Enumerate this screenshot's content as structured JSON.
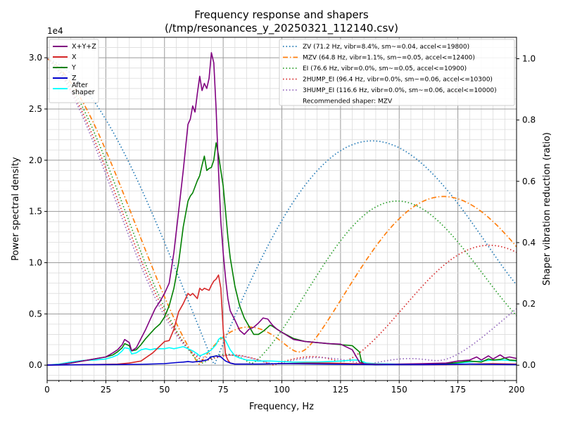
{
  "chart_data": {
    "type": "line",
    "title": "Frequency response and shapers",
    "subtitle": "(/tmp/resonances_y_20250321_112140.csv)",
    "xlabel": "Frequency, Hz",
    "ylabel": "Power spectral density",
    "y2label": "Shaper vibration reduction (ratio)",
    "y_offset_text": "1e4",
    "xlim": [
      0,
      200
    ],
    "ylim": [
      -1500,
      32000
    ],
    "y2lim": [
      -0.05,
      1.07
    ],
    "x_ticks": [
      "0",
      "25",
      "50",
      "75",
      "100",
      "125",
      "150",
      "175",
      "200"
    ],
    "y_ticks": [
      "0.0",
      "0.5",
      "1.0",
      "1.5",
      "2.0",
      "2.5",
      "3.0"
    ],
    "y2_ticks": [
      "0.0",
      "0.2",
      "0.4",
      "0.6",
      "0.8",
      "1.0"
    ],
    "grid": true,
    "legend_left_position": "top-left",
    "legend_right_position": "top-right",
    "recommended_text": "Recommended shaper: MZV",
    "psd_series": [
      {
        "name": "X+Y+Z",
        "color": "#800080",
        "x": [
          0,
          5,
          10,
          15,
          20,
          25,
          28,
          30,
          32,
          33,
          35,
          36,
          38,
          40,
          42,
          44,
          46,
          48,
          50,
          52,
          54,
          56,
          58,
          60,
          61,
          62,
          63,
          64,
          65,
          66,
          67,
          68,
          69,
          70,
          71,
          72,
          73,
          74,
          75,
          76,
          77,
          78,
          80,
          82,
          84,
          86,
          88,
          90,
          92,
          94,
          95,
          96,
          98,
          100,
          105,
          110,
          115,
          120,
          125,
          130,
          133,
          134,
          135,
          136,
          140,
          150,
          160,
          170,
          175,
          180,
          183,
          185,
          188,
          190,
          193,
          195,
          197,
          200
        ],
        "y": [
          0,
          50,
          200,
          400,
          600,
          800,
          1200,
          1500,
          2000,
          2500,
          2200,
          1400,
          1700,
          2600,
          3500,
          4500,
          5500,
          6200,
          7000,
          8000,
          11000,
          15000,
          19000,
          23500,
          24000,
          25300,
          24700,
          26500,
          28200,
          26800,
          27500,
          27000,
          28000,
          30500,
          29500,
          25000,
          19000,
          14000,
          11000,
          8500,
          6500,
          5300,
          4400,
          3400,
          3000,
          3500,
          3700,
          4100,
          4600,
          4500,
          4200,
          3900,
          3500,
          3200,
          2500,
          2300,
          2200,
          2100,
          2050,
          1500,
          300,
          200,
          150,
          100,
          50,
          100,
          150,
          200,
          400,
          500,
          800,
          500,
          900,
          600,
          1000,
          700,
          800,
          650
        ]
      },
      {
        "name": "X",
        "color": "#d62728",
        "x": [
          0,
          10,
          20,
          30,
          35,
          40,
          45,
          50,
          52,
          54,
          56,
          58,
          60,
          61,
          62,
          64,
          65,
          66,
          67,
          68,
          69,
          70,
          71,
          72,
          73,
          74,
          75,
          76,
          77,
          78,
          80,
          90,
          100,
          110,
          120,
          130,
          140,
          150,
          160,
          170,
          180,
          190,
          200
        ],
        "y": [
          0,
          30,
          60,
          100,
          200,
          400,
          1200,
          2300,
          2400,
          3500,
          5200,
          6000,
          7000,
          6800,
          7000,
          6500,
          7500,
          7300,
          7500,
          7400,
          7300,
          7800,
          8200,
          8400,
          8800,
          7500,
          3500,
          1000,
          500,
          200,
          100,
          100,
          150,
          200,
          200,
          150,
          100,
          50,
          50,
          50,
          100,
          150,
          100
        ]
      },
      {
        "name": "Y",
        "color": "#008000",
        "x": [
          0,
          5,
          10,
          15,
          20,
          25,
          28,
          30,
          32,
          33,
          34,
          35,
          36,
          38,
          40,
          42,
          44,
          46,
          48,
          50,
          52,
          54,
          56,
          58,
          60,
          61,
          62,
          64,
          65,
          66,
          67,
          68,
          69,
          70,
          71,
          72,
          73,
          74,
          75,
          76,
          77,
          78,
          80,
          82,
          84,
          86,
          88,
          90,
          92,
          94,
          95,
          96,
          98,
          100,
          105,
          110,
          115,
          120,
          125,
          130,
          133,
          134,
          135,
          136,
          140,
          150,
          160,
          170,
          175,
          180,
          185,
          188,
          190,
          193,
          195,
          197,
          200
        ],
        "y": [
          0,
          50,
          200,
          400,
          600,
          800,
          1000,
          1300,
          1700,
          2100,
          2000,
          1900,
          1400,
          1500,
          2000,
          2600,
          3100,
          3600,
          4000,
          4700,
          5800,
          7500,
          10000,
          13500,
          16000,
          16500,
          16800,
          18000,
          18500,
          19500,
          20400,
          19000,
          19200,
          19300,
          20000,
          21700,
          20500,
          19000,
          17500,
          15000,
          12500,
          10500,
          7700,
          5800,
          4600,
          3800,
          3000,
          3000,
          3300,
          3700,
          3900,
          3800,
          3500,
          3200,
          2600,
          2300,
          2200,
          2100,
          2000,
          1900,
          1300,
          300,
          150,
          100,
          50,
          80,
          100,
          150,
          250,
          400,
          300,
          600,
          500,
          550,
          700,
          500,
          450
        ]
      },
      {
        "name": "Z",
        "color": "#0000cd",
        "x": [
          0,
          10,
          20,
          30,
          40,
          50,
          55,
          58,
          60,
          62,
          64,
          66,
          68,
          70,
          72,
          74,
          76,
          78,
          80,
          90,
          100,
          120,
          140,
          160,
          180,
          200
        ],
        "y": [
          0,
          30,
          50,
          60,
          80,
          150,
          250,
          300,
          350,
          300,
          350,
          400,
          500,
          800,
          900,
          800,
          400,
          200,
          100,
          100,
          150,
          100,
          50,
          50,
          100,
          50
        ]
      },
      {
        "name": "After\nshaper",
        "color": "#00ffff",
        "x": [
          0,
          5,
          10,
          15,
          20,
          25,
          28,
          30,
          32,
          33,
          35,
          36,
          38,
          40,
          42,
          44,
          46,
          48,
          50,
          52,
          54,
          56,
          58,
          60,
          62,
          64,
          65,
          66,
          67,
          68,
          70,
          72,
          73,
          74,
          75,
          76,
          78,
          80,
          82,
          85,
          88,
          90,
          95,
          100,
          105,
          110,
          115,
          120,
          125,
          128,
          130,
          132,
          134,
          135,
          136,
          140,
          150,
          160,
          170,
          175,
          180,
          185,
          190,
          195,
          200
        ],
        "y": [
          0,
          100,
          300,
          450,
          500,
          600,
          800,
          1000,
          1400,
          1700,
          1600,
          1100,
          1200,
          1500,
          1600,
          1500,
          1600,
          1600,
          1600,
          1700,
          1600,
          1700,
          1800,
          1600,
          1400,
          1100,
          900,
          1000,
          1100,
          1200,
          1500,
          2000,
          2500,
          2700,
          2600,
          2400,
          1500,
          900,
          700,
          500,
          450,
          400,
          400,
          350,
          300,
          300,
          300,
          350,
          400,
          450,
          500,
          500,
          400,
          300,
          200,
          150,
          100,
          100,
          150,
          200,
          300,
          400,
          500,
          500,
          400
        ]
      }
    ],
    "shaper_series": [
      {
        "name": "ZV (71.2 Hz, vibr=8.4%, sm~=0.04, accel<=19800)",
        "color": "#1f77b4",
        "style": "dotted",
        "f0": 71.2,
        "type": "zv"
      },
      {
        "name": "MZV (64.8 Hz, vibr=1.1%, sm~=0.05, accel<=12400)",
        "color": "#ff7f0e",
        "style": "dashdot",
        "f0": 64.8,
        "type": "mzv"
      },
      {
        "name": "EI (76.6 Hz, vibr=0.0%, sm~=0.05, accel<=10900)",
        "color": "#2ca02c",
        "style": "dotted",
        "f0": 76.6,
        "type": "ei"
      },
      {
        "name": "2HUMP_EI (96.4 Hz, vibr=0.0%, sm~=0.06, accel<=10300)",
        "color": "#d62728",
        "style": "dotted",
        "f0": 96.4,
        "type": "2hump_ei"
      },
      {
        "name": "3HUMP_EI (116.6 Hz, vibr=0.0%, sm~=0.06, accel<=10000)",
        "color": "#9467bd",
        "style": "dotted",
        "f0": 116.6,
        "type": "3hump_ei"
      }
    ]
  }
}
